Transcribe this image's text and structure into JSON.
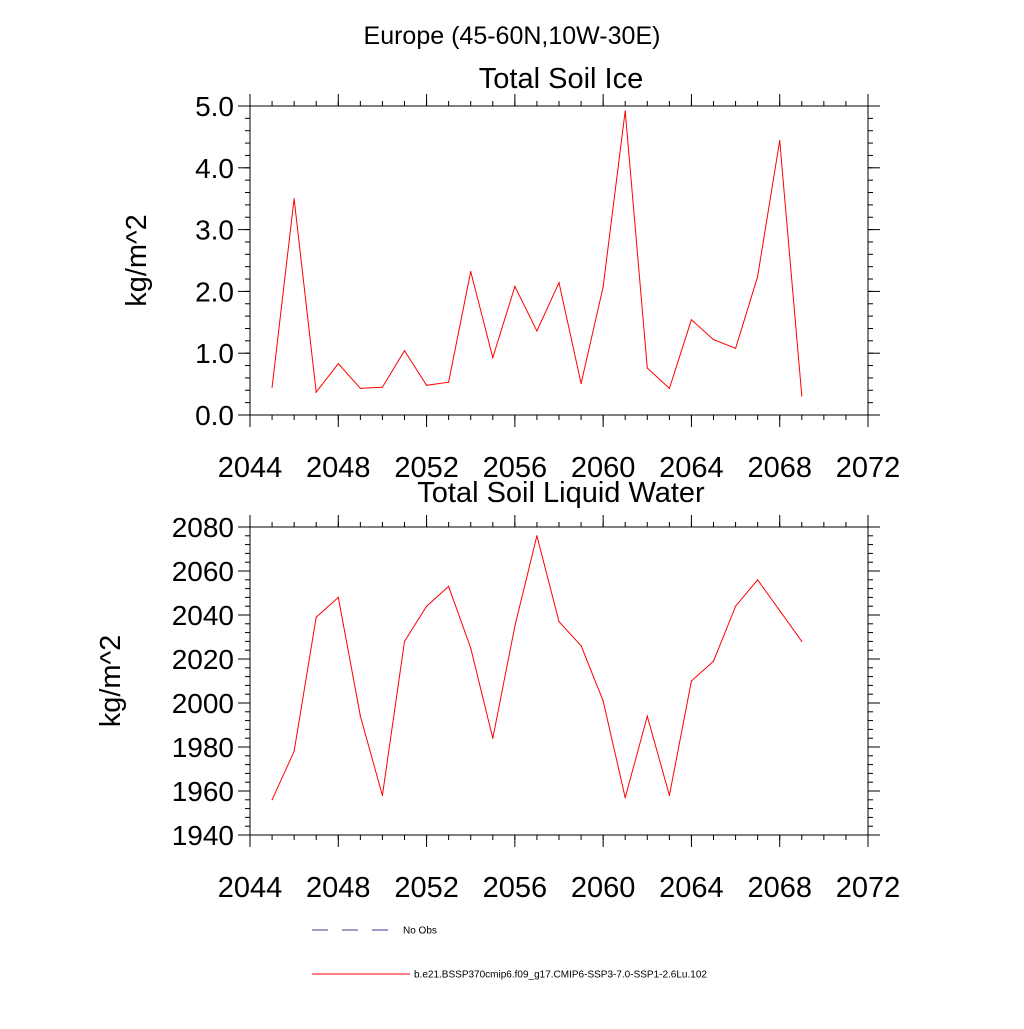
{
  "page_title": "Europe (45-60N,10W-30E)",
  "colors": {
    "series": "#ff0000",
    "no_obs": "#3b3b8f",
    "axis": "#000000"
  },
  "chart_data": [
    {
      "type": "line",
      "title": "Total Soil Ice",
      "xlabel": "",
      "ylabel": "kg/m^2",
      "xlim": [
        2044,
        2072
      ],
      "ylim": [
        0,
        5
      ],
      "x_ticks": [
        2044,
        2048,
        2052,
        2056,
        2060,
        2064,
        2068,
        2072
      ],
      "y_ticks": [
        0,
        1,
        2,
        3,
        4,
        5
      ],
      "y_tick_labels": [
        "0.0",
        "1.0",
        "2.0",
        "3.0",
        "4.0",
        "5.0"
      ],
      "y_minor_step": 0.2,
      "x_minor_step": 1,
      "grid": false,
      "series": [
        {
          "name": "b.e21.BSSP370cmip6.f09_g17.CMIP6-SSP3-7.0-SSP1-2.6Lu.102",
          "x": [
            2045,
            2046,
            2047,
            2048,
            2049,
            2050,
            2051,
            2052,
            2053,
            2054,
            2055,
            2056,
            2057,
            2058,
            2059,
            2060,
            2061,
            2062,
            2063,
            2064,
            2065,
            2066,
            2067,
            2068,
            2069
          ],
          "values": [
            0.45,
            3.5,
            0.37,
            0.83,
            0.43,
            0.45,
            1.04,
            0.48,
            0.53,
            2.32,
            0.93,
            2.08,
            1.36,
            2.14,
            0.51,
            2.07,
            4.92,
            0.76,
            0.43,
            1.54,
            1.22,
            1.08,
            2.24,
            4.44,
            0.31
          ]
        }
      ]
    },
    {
      "type": "line",
      "title": "Total Soil Liquid Water",
      "xlabel": "",
      "ylabel": "kg/m^2",
      "xlim": [
        2044,
        2072
      ],
      "ylim": [
        1940,
        2080
      ],
      "x_ticks": [
        2044,
        2048,
        2052,
        2056,
        2060,
        2064,
        2068,
        2072
      ],
      "y_ticks": [
        1940,
        1960,
        1980,
        2000,
        2020,
        2040,
        2060,
        2080
      ],
      "y_tick_labels": [
        "1940",
        "1960",
        "1980",
        "2000",
        "2020",
        "2040",
        "2060",
        "2080"
      ],
      "y_minor_step": 4,
      "x_minor_step": 1,
      "grid": false,
      "series": [
        {
          "name": "b.e21.BSSP370cmip6.f09_g17.CMIP6-SSP3-7.0-SSP1-2.6Lu.102",
          "x": [
            2045,
            2046,
            2047,
            2048,
            2049,
            2050,
            2051,
            2052,
            2053,
            2054,
            2055,
            2056,
            2057,
            2058,
            2059,
            2060,
            2061,
            2062,
            2063,
            2064,
            2065,
            2066,
            2067,
            2068,
            2069
          ],
          "values": [
            1956,
            1978,
            2039,
            2048,
            1994,
            1958,
            2028,
            2044,
            2053,
            2025,
            1984,
            2035,
            2076,
            2037,
            2026,
            2001,
            1957,
            1994,
            1958,
            2010,
            2019,
            2044,
            2056,
            2042,
            2028
          ]
        }
      ]
    }
  ],
  "legend": {
    "items": [
      {
        "label": "No Obs",
        "style": "dashed",
        "color": "#3b3b8f"
      },
      {
        "label": "b.e21.BSSP370cmip6.f09_g17.CMIP6-SSP3-7.0-SSP1-2.6Lu.102",
        "style": "solid",
        "color": "#ff0000"
      }
    ]
  }
}
